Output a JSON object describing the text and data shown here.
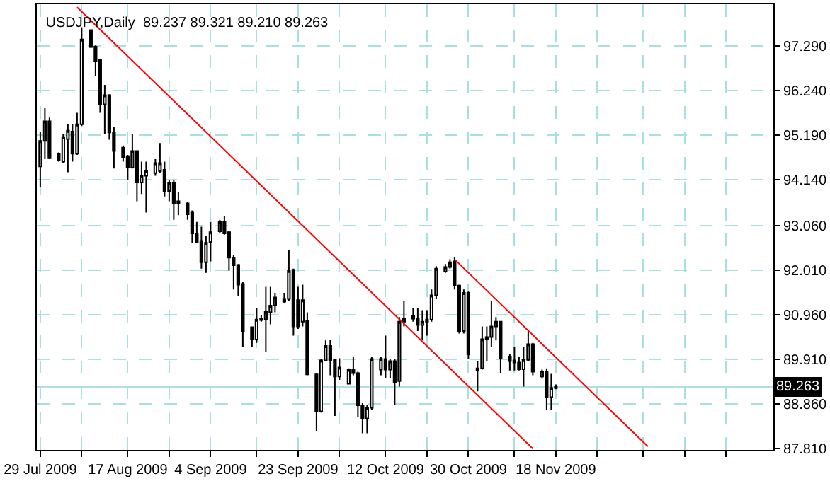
{
  "chart_data": {
    "type": "candlestick",
    "title": "USDJPY,Daily  89.237 89.321 89.210 89.263",
    "series": [
      {
        "color": "#000000",
        "x": [
          "2009-07-29",
          "2009-07-30",
          "2009-07-31",
          "2009-08-02",
          "2009-08-03",
          "2009-08-04",
          "2009-08-05",
          "2009-08-06",
          "2009-08-07",
          "2009-08-09",
          "2009-08-10",
          "2009-08-11",
          "2009-08-12",
          "2009-08-13",
          "2009-08-14",
          "2009-08-16",
          "2009-08-17",
          "2009-08-18",
          "2009-08-19",
          "2009-08-20",
          "2009-08-21",
          "2009-08-23",
          "2009-08-24",
          "2009-08-25",
          "2009-08-26",
          "2009-08-27",
          "2009-08-28",
          "2009-08-30",
          "2009-08-31",
          "2009-09-01",
          "2009-09-02",
          "2009-09-03",
          "2009-09-04",
          "2009-09-06",
          "2009-09-07",
          "2009-09-08",
          "2009-09-09",
          "2009-09-10",
          "2009-09-11",
          "2009-09-13",
          "2009-09-14",
          "2009-09-15",
          "2009-09-16",
          "2009-09-17",
          "2009-09-18",
          "2009-09-20",
          "2009-09-21",
          "2009-09-22",
          "2009-09-23",
          "2009-09-24",
          "2009-09-25",
          "2009-09-27",
          "2009-09-28",
          "2009-09-29",
          "2009-09-30",
          "2009-10-01",
          "2009-10-02",
          "2009-10-04",
          "2009-10-05",
          "2009-10-06",
          "2009-10-07",
          "2009-10-08",
          "2009-10-09",
          "2009-10-11",
          "2009-10-12",
          "2009-10-13",
          "2009-10-14",
          "2009-10-15",
          "2009-10-16",
          "2009-10-18",
          "2009-10-19",
          "2009-10-20",
          "2009-10-21",
          "2009-10-22",
          "2009-10-23",
          "2009-10-25",
          "2009-10-26",
          "2009-10-27",
          "2009-10-28",
          "2009-10-29",
          "2009-10-30",
          "2009-11-01",
          "2009-11-02",
          "2009-11-03",
          "2009-11-04",
          "2009-11-05",
          "2009-11-06",
          "2009-11-08",
          "2009-11-09",
          "2009-11-10",
          "2009-11-11",
          "2009-11-12",
          "2009-11-13",
          "2009-11-15",
          "2009-11-16",
          "2009-11-17",
          "2009-11-18"
        ],
        "ohlc": [
          [
            94.46,
            95.28,
            93.97,
            95.06
          ],
          [
            95.06,
            95.83,
            94.63,
            95.52
          ],
          [
            95.52,
            95.61,
            94.63,
            94.65
          ],
          [
            94.76,
            94.79,
            94.57,
            94.6
          ],
          [
            94.57,
            95.23,
            94.54,
            95.15
          ],
          [
            95.1,
            95.45,
            94.32,
            95.3
          ],
          [
            95.28,
            95.45,
            94.57,
            94.76
          ],
          [
            94.76,
            95.72,
            94.73,
            95.45
          ],
          [
            95.45,
            97.74,
            95.41,
            97.45
          ],
          [
            97.67,
            97.69,
            97.25,
            97.27
          ],
          [
            97.28,
            97.31,
            96.59,
            96.94
          ],
          [
            96.98,
            96.98,
            95.72,
            95.92
          ],
          [
            95.92,
            96.38,
            95.23,
            96.14
          ],
          [
            96.14,
            96.16,
            95.09,
            95.26
          ],
          [
            95.26,
            95.39,
            94.41,
            94.82
          ],
          [
            94.9,
            94.95,
            94.57,
            94.68
          ],
          [
            94.7,
            94.73,
            94.13,
            94.43
          ],
          [
            94.43,
            95.23,
            94.41,
            94.82
          ],
          [
            94.82,
            94.84,
            93.64,
            94.08
          ],
          [
            94.08,
            94.57,
            93.81,
            94.24
          ],
          [
            94.24,
            94.57,
            93.37,
            94.35
          ],
          [
            94.3,
            94.63,
            94.24,
            94.54
          ],
          [
            94.35,
            95.01,
            94.3,
            94.54
          ],
          [
            94.38,
            94.57,
            93.75,
            93.88
          ],
          [
            93.88,
            94.13,
            93.64,
            94.08
          ],
          [
            94.08,
            94.13,
            93.2,
            93.59
          ],
          [
            93.64,
            93.86,
            93.31,
            93.59
          ],
          [
            93.59,
            93.62,
            93.2,
            93.33
          ],
          [
            93.37,
            93.42,
            92.66,
            92.88
          ],
          [
            92.88,
            93.15,
            92.66,
            92.68
          ],
          [
            92.69,
            93.04,
            92.05,
            92.2
          ],
          [
            92.2,
            92.82,
            91.95,
            92.66
          ],
          [
            92.68,
            93.15,
            92.22,
            92.91
          ],
          [
            92.93,
            93.2,
            92.88,
            93.15
          ],
          [
            93.15,
            93.29,
            92.85,
            92.88
          ],
          [
            92.91,
            92.93,
            92.0,
            92.31
          ],
          [
            92.31,
            92.38,
            91.56,
            92.13
          ],
          [
            92.14,
            92.16,
            91.4,
            91.67
          ],
          [
            91.69,
            91.73,
            90.2,
            90.58
          ],
          [
            90.67,
            90.69,
            90.2,
            90.38
          ],
          [
            90.38,
            91.13,
            90.3,
            90.85
          ],
          [
            90.88,
            90.96,
            90.8,
            90.84
          ],
          [
            90.85,
            91.62,
            90.09,
            91.04
          ],
          [
            91.02,
            91.62,
            90.74,
            91.18
          ],
          [
            91.18,
            91.48,
            91.02,
            91.37
          ],
          [
            91.27,
            91.48,
            91.23,
            91.34
          ],
          [
            91.34,
            92.49,
            91.29,
            92.0
          ],
          [
            92.02,
            92.05,
            90.47,
            90.69
          ],
          [
            91.31,
            91.62,
            90.63,
            90.69
          ],
          [
            90.8,
            91.67,
            90.69,
            91.31
          ],
          [
            90.82,
            91.02,
            89.54,
            89.56
          ],
          [
            89.56,
            89.59,
            88.23,
            88.69
          ],
          [
            88.69,
            89.92,
            88.66,
            89.89
          ],
          [
            89.89,
            90.36,
            89.87,
            90.23
          ],
          [
            90.23,
            90.38,
            89.54,
            89.89
          ],
          [
            89.9,
            89.92,
            88.58,
            89.51
          ],
          [
            89.51,
            89.94,
            89.43,
            89.72
          ],
          [
            89.34,
            89.7,
            89.32,
            89.67
          ],
          [
            89.68,
            89.98,
            89.54,
            89.59
          ],
          [
            89.59,
            89.62,
            88.55,
            88.83
          ],
          [
            88.83,
            88.88,
            88.17,
            88.52
          ],
          [
            88.52,
            88.83,
            88.17,
            88.77
          ],
          [
            88.77,
            89.98,
            88.72,
            89.92
          ],
          [
            89.67,
            89.98,
            89.54,
            89.92
          ],
          [
            89.92,
            90.47,
            89.48,
            89.67
          ],
          [
            89.67,
            89.92,
            89.48,
            89.87
          ],
          [
            89.87,
            89.92,
            88.83,
            89.37
          ],
          [
            89.4,
            90.91,
            89.27,
            90.8
          ],
          [
            90.8,
            91.29,
            90.69,
            90.88
          ],
          [
            90.94,
            91.13,
            90.8,
            90.87
          ],
          [
            90.88,
            91.13,
            90.58,
            90.72
          ],
          [
            90.72,
            91.07,
            90.36,
            90.8
          ],
          [
            90.8,
            91.07,
            90.47,
            90.85
          ],
          [
            90.85,
            91.56,
            90.8,
            91.42
          ],
          [
            91.42,
            92.11,
            91.34,
            92.05
          ],
          [
            91.98,
            92.16,
            91.95,
            92.09
          ],
          [
            92.09,
            92.27,
            92.05,
            92.2
          ],
          [
            92.22,
            92.33,
            91.56,
            91.65
          ],
          [
            91.65,
            91.67,
            90.52,
            90.58
          ],
          [
            90.58,
            91.56,
            90.52,
            91.48
          ],
          [
            91.48,
            91.51,
            89.92,
            90.03
          ],
          [
            89.65,
            89.87,
            89.16,
            89.7
          ],
          [
            89.7,
            90.69,
            89.67,
            90.39
          ],
          [
            90.39,
            90.69,
            89.87,
            90.44
          ],
          [
            90.44,
            91.29,
            90.2,
            90.69
          ],
          [
            90.69,
            90.91,
            90.36,
            90.8
          ],
          [
            90.8,
            90.8,
            89.59,
            89.94
          ],
          [
            89.98,
            90.03,
            89.65,
            89.87
          ],
          [
            89.89,
            90.2,
            89.65,
            89.84
          ],
          [
            89.84,
            89.98,
            89.65,
            89.68
          ],
          [
            89.68,
            90.2,
            89.27,
            89.9
          ],
          [
            89.9,
            90.58,
            89.87,
            90.27
          ],
          [
            90.27,
            90.3,
            89.54,
            89.62
          ],
          [
            89.51,
            89.67,
            89.46,
            89.63
          ],
          [
            89.63,
            89.7,
            88.72,
            89.02
          ],
          [
            89.02,
            89.57,
            88.72,
            89.24
          ],
          [
            89.237,
            89.321,
            89.21,
            89.263
          ]
        ]
      },
      {
        "type": "line",
        "color": "#ff0000",
        "x": [
          "2009-08-06",
          "2009-11-13"
        ],
        "values": [
          98.21,
          87.81
        ]
      },
      {
        "type": "line",
        "color": "#ff0000",
        "x": [
          "2009-10-27",
          "2009-12-08"
        ],
        "values": [
          92.27,
          87.86
        ]
      }
    ],
    "xlim": [
      "2009-07-28T06:00",
      "2010-01-04T06:00"
    ],
    "xticks": [
      {
        "value": "2009-07-29",
        "label": "29 Jul 2009"
      },
      {
        "value": "2009-08-07",
        "label": null
      },
      {
        "value": "2009-08-17",
        "label": "17 Aug 2009"
      },
      {
        "value": "2009-08-26",
        "label": null
      },
      {
        "value": "2009-09-04",
        "label": "4 Sep 2009"
      },
      {
        "value": "2009-09-14",
        "label": null
      },
      {
        "value": "2009-09-23",
        "label": "23 Sep 2009"
      },
      {
        "value": "2009-10-02",
        "label": null
      },
      {
        "value": "2009-10-12",
        "label": "12 Oct 2009"
      },
      {
        "value": "2009-10-21",
        "label": null
      },
      {
        "value": "2009-10-30",
        "label": "30 Oct 2009"
      },
      {
        "value": "2009-11-09",
        "label": null
      },
      {
        "value": "2009-11-18",
        "label": "18 Nov 2009"
      },
      {
        "value": "2009-11-27",
        "label": null
      },
      {
        "value": "2009-12-07",
        "label": null
      },
      {
        "value": "2009-12-16",
        "label": null
      },
      {
        "value": "2009-12-25",
        "label": null
      }
    ],
    "ylim": [
      87.78,
      98.28
    ],
    "yticks": [
      {
        "value": 87.81,
        "label": "87.810"
      },
      {
        "value": 88.86,
        "label": "88.860"
      },
      {
        "value": 89.91,
        "label": "89.910"
      },
      {
        "value": 90.96,
        "label": "90.960"
      },
      {
        "value": 92.01,
        "label": "92.010"
      },
      {
        "value": 93.06,
        "label": "93.060"
      },
      {
        "value": 94.14,
        "label": "94.140"
      },
      {
        "value": 95.19,
        "label": "95.190"
      },
      {
        "value": 96.24,
        "label": "96.240"
      },
      {
        "value": 97.29,
        "label": "97.290"
      }
    ],
    "ref_lines": [
      {
        "axis": "y",
        "value": 89.263,
        "label": "89.263",
        "color": "#b0e0e6"
      }
    ],
    "grid": true
  }
}
